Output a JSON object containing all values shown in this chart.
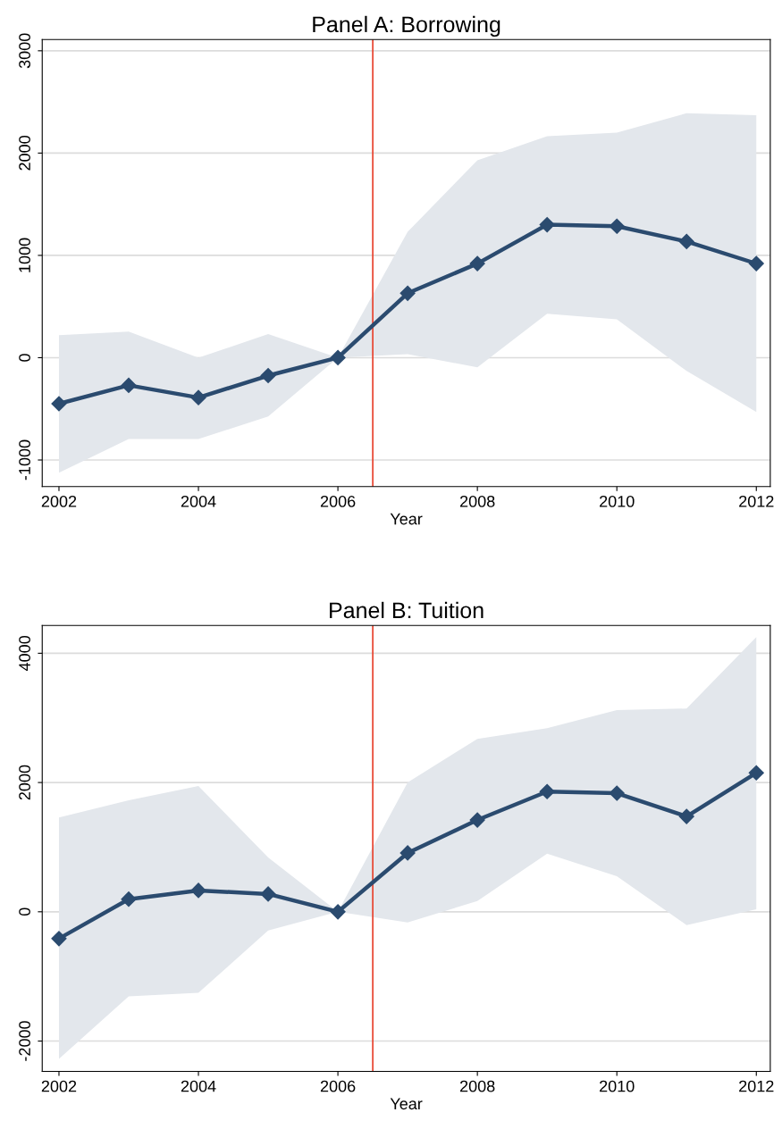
{
  "chart_data": [
    {
      "type": "line",
      "title": "Panel A: Borrowing",
      "xlabel": "Year",
      "x": [
        2002,
        2003,
        2004,
        2005,
        2006,
        2007,
        2008,
        2009,
        2010,
        2011,
        2012
      ],
      "series": [
        {
          "color": "#2b4b6f",
          "values": [
            -450,
            -270,
            -390,
            -175,
            0,
            630,
            920,
            1300,
            1285,
            1135,
            920
          ],
          "lower": [
            -1125,
            -795,
            -795,
            -575,
            0,
            35,
            -95,
            430,
            375,
            -130,
            -530
          ],
          "upper": [
            220,
            255,
            0,
            230,
            0,
            1230,
            1930,
            2165,
            2200,
            2390,
            2370
          ]
        }
      ],
      "marker": "diamond",
      "line_style": "solid",
      "grid": "y",
      "xlim": [
        2001.76,
        2012.2
      ],
      "xticks": [
        2002,
        2004,
        2006,
        2008,
        2010,
        2012
      ],
      "ylim": [
        -1260,
        3110
      ],
      "yticks": [
        -1000,
        0,
        1000,
        2000,
        3000
      ],
      "ref_lines": [
        {
          "axis": "x",
          "value": 2006.5,
          "color": "#e8402b"
        }
      ]
    },
    {
      "type": "line",
      "title": "Panel B: Tuition",
      "xlabel": "Year",
      "x": [
        2002,
        2003,
        2004,
        2005,
        2006,
        2007,
        2008,
        2009,
        2010,
        2011,
        2012
      ],
      "series": [
        {
          "color": "#2b4b6f",
          "values": [
            -415,
            195,
            330,
            275,
            0,
            910,
            1420,
            1860,
            1835,
            1475,
            2150
          ],
          "lower": [
            -2275,
            -1310,
            -1255,
            -290,
            0,
            -165,
            165,
            900,
            550,
            -205,
            40
          ],
          "upper": [
            1460,
            1725,
            1945,
            840,
            0,
            2000,
            2675,
            2840,
            3120,
            3145,
            4250
          ]
        }
      ],
      "marker": "diamond",
      "line_style": "solid",
      "grid": "y",
      "xlim": [
        2001.76,
        2012.2
      ],
      "xticks": [
        2002,
        2004,
        2006,
        2008,
        2010,
        2012
      ],
      "ylim": [
        -2470,
        4430
      ],
      "yticks": [
        -2000,
        0,
        2000,
        4000
      ],
      "ref_lines": [
        {
          "axis": "x",
          "value": 2006.5,
          "color": "#e8402b"
        }
      ]
    }
  ]
}
